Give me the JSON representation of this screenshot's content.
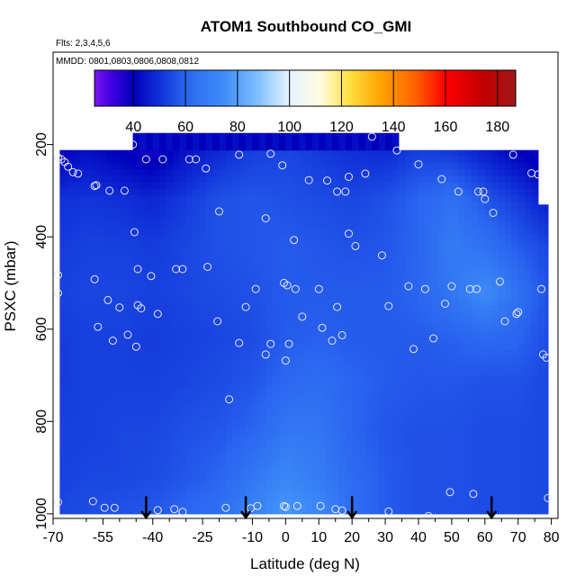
{
  "chart_data": {
    "type": "heatmap",
    "title": "ATOM1 Southbound CO_GMI",
    "subtitle_flights": "Flts: 2,3,4,5,6",
    "subtitle_dates": "MMDD: 0801,0803,0806,0808,0812",
    "xlabel": "Latitude (deg N)",
    "ylabel": "PSXC (mbar)",
    "xlim": [
      -70,
      82
    ],
    "ylim": [
      1010,
      0
    ],
    "x_ticks": [
      -70,
      -55,
      -40,
      -25,
      -10,
      0,
      10,
      20,
      30,
      40,
      50,
      60,
      70,
      80
    ],
    "x_tick_labels": [
      "-70",
      "-55",
      "-40",
      "-25",
      "-10",
      "0",
      "10",
      "20",
      "30",
      "40",
      "50",
      "60",
      "70",
      "80"
    ],
    "x_minor_ticks": [
      -60,
      -50,
      -45,
      -35,
      -30,
      -20,
      -15,
      -5,
      5,
      15,
      25,
      35,
      45,
      55,
      65,
      75
    ],
    "y_ticks": [
      200,
      400,
      600,
      800,
      1000
    ],
    "y_tick_labels": [
      "200",
      "400",
      "600",
      "800",
      "1000"
    ],
    "colorbar": {
      "min": 25,
      "max": 187,
      "ticks": [
        40,
        60,
        80,
        100,
        120,
        140,
        160,
        180
      ],
      "tick_labels": [
        "40",
        "60",
        "80",
        "100",
        "120",
        "140",
        "160",
        "180"
      ],
      "stops": [
        {
          "v": 25,
          "color": "#7b14f0"
        },
        {
          "v": 32,
          "color": "#3a00e0"
        },
        {
          "v": 40,
          "color": "#0000bb"
        },
        {
          "v": 50,
          "color": "#1030d8"
        },
        {
          "v": 60,
          "color": "#2a66f0"
        },
        {
          "v": 75,
          "color": "#3f8ef8"
        },
        {
          "v": 88,
          "color": "#7fc0ff"
        },
        {
          "v": 100,
          "color": "#e6f4ff"
        },
        {
          "v": 112,
          "color": "#fffbe0"
        },
        {
          "v": 123,
          "color": "#ffe040"
        },
        {
          "v": 135,
          "color": "#ffa400"
        },
        {
          "v": 148,
          "color": "#ff6400"
        },
        {
          "v": 160,
          "color": "#ff0000"
        },
        {
          "v": 175,
          "color": "#c00000"
        },
        {
          "v": 187,
          "color": "#a01818"
        }
      ]
    },
    "field_grid": {
      "lat": [
        -68,
        -60,
        -50,
        -40,
        -30,
        -20,
        -10,
        0,
        10,
        20,
        30,
        40,
        50,
        60,
        70,
        79
      ],
      "pressure": [
        220,
        320,
        420,
        520,
        620,
        720,
        820,
        920,
        985
      ],
      "values": [
        [
          40,
          44,
          40,
          37,
          44,
          49,
          53,
          54,
          52,
          50,
          49,
          53,
          52,
          47,
          41,
          36
        ],
        [
          50,
          51,
          50,
          48,
          52,
          56,
          57,
          56,
          55,
          54,
          56,
          60,
          64,
          57,
          52,
          46
        ],
        [
          52,
          53,
          53,
          52,
          54,
          56,
          57,
          58,
          57,
          56,
          57,
          60,
          68,
          64,
          58,
          54
        ],
        [
          53,
          54,
          54,
          53,
          54,
          55,
          56,
          58,
          58,
          58,
          58,
          60,
          66,
          74,
          64,
          56
        ],
        [
          52,
          53,
          53,
          52,
          53,
          54,
          55,
          58,
          59,
          58,
          58,
          58,
          59,
          61,
          60,
          55
        ],
        [
          52,
          53,
          53,
          53,
          54,
          55,
          57,
          61,
          63,
          60,
          58,
          57,
          57,
          56,
          56,
          54
        ],
        [
          53,
          53,
          54,
          54,
          56,
          57,
          60,
          66,
          66,
          60,
          57,
          56,
          56,
          55,
          55,
          54
        ],
        [
          53,
          54,
          54,
          55,
          57,
          60,
          66,
          72,
          68,
          62,
          58,
          56,
          56,
          55,
          55,
          54
        ],
        [
          54,
          55,
          56,
          57,
          60,
          63,
          70,
          77,
          72,
          63,
          58,
          56,
          56,
          55,
          55,
          54
        ]
      ],
      "top_pressure": [
        {
          "lat_start": -68,
          "lat_end": -46,
          "p": 212
        },
        {
          "lat_start": -46,
          "lat_end": 34,
          "p": 175
        },
        {
          "lat_start": 34,
          "lat_end": 76,
          "p": 212
        },
        {
          "lat_start": 76,
          "lat_end": 79,
          "p": 330
        }
      ]
    },
    "extra_high_cells": [
      {
        "lat_start": -46,
        "lat_end": 34,
        "p_top": 175,
        "p_bot": 212,
        "value": 40
      }
    ],
    "observations": [
      [
        -68.5,
        228
      ],
      [
        -67.5,
        232
      ],
      [
        -66.5,
        238
      ],
      [
        -65.5,
        248
      ],
      [
        -64,
        260
      ],
      [
        -62.5,
        263
      ],
      [
        -57.5,
        290
      ],
      [
        -57,
        288
      ],
      [
        -53,
        300
      ],
      [
        -48.5,
        300
      ],
      [
        -46,
        200
      ],
      [
        -42,
        232
      ],
      [
        -37,
        232
      ],
      [
        -29,
        232
      ],
      [
        -27,
        232
      ],
      [
        -24,
        252
      ],
      [
        -20,
        345
      ],
      [
        -14,
        222
      ],
      [
        -6,
        360
      ],
      [
        -4.5,
        220
      ],
      [
        -1,
        245
      ],
      [
        7,
        277
      ],
      [
        12.5,
        278
      ],
      [
        15.5,
        302
      ],
      [
        18,
        302
      ],
      [
        19,
        270
      ],
      [
        24,
        263
      ],
      [
        26,
        183
      ],
      [
        33.5,
        213
      ],
      [
        40,
        243
      ],
      [
        47,
        275
      ],
      [
        52,
        302
      ],
      [
        58,
        302
      ],
      [
        59.5,
        302
      ],
      [
        60,
        318
      ],
      [
        62.5,
        348
      ],
      [
        68.5,
        222
      ],
      [
        74,
        262
      ],
      [
        76,
        265
      ],
      [
        -45.5,
        390
      ],
      [
        -44.5,
        470
      ],
      [
        -40.5,
        485
      ],
      [
        -33,
        470
      ],
      [
        -31,
        470
      ],
      [
        -23.5,
        465
      ],
      [
        -57.5,
        492
      ],
      [
        -53.5,
        537
      ],
      [
        -50,
        553
      ],
      [
        -44.5,
        548
      ],
      [
        -43.5,
        555
      ],
      [
        -38.5,
        567
      ],
      [
        -47.5,
        612
      ],
      [
        -45,
        638
      ],
      [
        -52,
        625
      ],
      [
        -56.5,
        595
      ],
      [
        -68.5,
        483
      ],
      [
        -68.5,
        522
      ],
      [
        -20.5,
        583
      ],
      [
        -14,
        630
      ],
      [
        -12,
        552
      ],
      [
        -9,
        513
      ],
      [
        -6,
        655
      ],
      [
        -4.5,
        632
      ],
      [
        -0.5,
        500
      ],
      [
        0.5,
        505
      ],
      [
        1,
        632
      ],
      [
        0,
        668
      ],
      [
        2.5,
        407
      ],
      [
        3,
        513
      ],
      [
        5,
        573
      ],
      [
        10,
        513
      ],
      [
        11,
        597
      ],
      [
        14,
        625
      ],
      [
        15.5,
        552
      ],
      [
        17,
        613
      ],
      [
        19,
        393
      ],
      [
        21,
        420
      ],
      [
        29,
        440
      ],
      [
        31,
        550
      ],
      [
        37,
        507
      ],
      [
        38.5,
        643
      ],
      [
        42,
        513
      ],
      [
        44.5,
        620
      ],
      [
        48,
        545
      ],
      [
        50,
        507
      ],
      [
        55.5,
        513
      ],
      [
        57.5,
        513
      ],
      [
        64.5,
        497
      ],
      [
        66,
        583
      ],
      [
        69.5,
        567
      ],
      [
        77,
        513
      ],
      [
        77.5,
        655
      ],
      [
        78.5,
        662
      ],
      [
        70,
        563
      ],
      [
        -17,
        752
      ],
      [
        -68.5,
        975
      ],
      [
        -58,
        973
      ],
      [
        -54.5,
        987
      ],
      [
        -51.5,
        987
      ],
      [
        -38.5,
        992
      ],
      [
        -33.5,
        990
      ],
      [
        -31,
        996
      ],
      [
        -18,
        987
      ],
      [
        -10.5,
        988
      ],
      [
        -8.5,
        983
      ],
      [
        -0.5,
        983
      ],
      [
        0,
        985
      ],
      [
        3.5,
        983
      ],
      [
        10.5,
        983
      ],
      [
        15,
        990
      ],
      [
        17,
        993
      ],
      [
        31,
        995
      ],
      [
        37,
        1010
      ],
      [
        43,
        1005
      ],
      [
        49.5,
        953
      ],
      [
        56.5,
        957
      ],
      [
        79,
        966
      ]
    ],
    "flight_arrows": [
      -42,
      -12,
      20,
      62
    ],
    "arrow_p_top": 962,
    "arrow_p_bottom": 1008
  }
}
